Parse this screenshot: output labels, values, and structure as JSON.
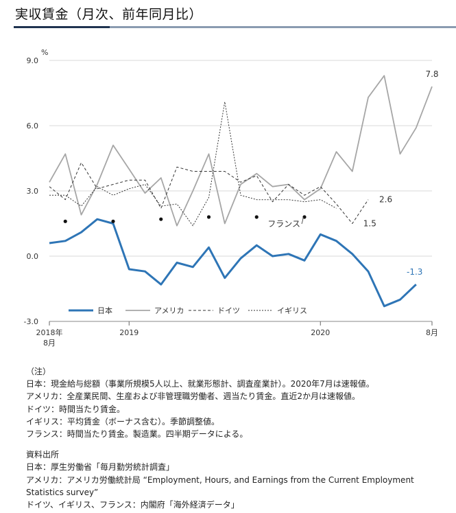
{
  "page_title": "実収賃金（月次、前年同月比）",
  "chart_data": {
    "type": "line",
    "title": "",
    "ylabel": "%",
    "ylim": [
      -3.0,
      9.0
    ],
    "yticks": [
      "9.0",
      "6.0",
      "3.0",
      "0.0",
      "-3.0"
    ],
    "ytick_values": [
      9,
      6,
      3,
      0,
      -3
    ],
    "xlim": [
      0,
      24
    ],
    "xticks": [
      {
        "pos": 0,
        "label": "2018年",
        "label2": "8月"
      },
      {
        "pos": 5,
        "label": "2019",
        "label2": ""
      },
      {
        "pos": 17,
        "label": "2020",
        "label2": ""
      },
      {
        "pos": 24,
        "label": "8月",
        "label2": ""
      }
    ],
    "grid": true,
    "legend_position": "bottom-left",
    "colors": {
      "japan": "#2e75b6",
      "usa": "#a6a6a6",
      "germany": "#333333",
      "uk": "#333333",
      "france": "#111111"
    },
    "series": [
      {
        "name": "日本",
        "key": "japan",
        "style": "solid-thick",
        "x": [
          0,
          1,
          2,
          3,
          4,
          5,
          6,
          7,
          8,
          9,
          10,
          11,
          12,
          13,
          14,
          15,
          16,
          17,
          18,
          19,
          20,
          21,
          22,
          23
        ],
        "values": [
          0.6,
          0.7,
          1.1,
          1.7,
          1.5,
          -0.6,
          -0.7,
          -1.3,
          -0.3,
          -0.5,
          0.4,
          -1.0,
          -0.1,
          0.5,
          0.0,
          0.1,
          -0.2,
          1.0,
          0.7,
          0.1,
          -0.7,
          -2.3,
          -2.0,
          -1.3
        ]
      },
      {
        "name": "アメリカ",
        "key": "usa",
        "style": "solid",
        "x": [
          0,
          1,
          2,
          3,
          4,
          5,
          6,
          7,
          8,
          9,
          10,
          11,
          12,
          13,
          14,
          15,
          16,
          17,
          18,
          19,
          20,
          21,
          22,
          23,
          24
        ],
        "values": [
          3.4,
          4.7,
          1.9,
          3.3,
          5.1,
          4.0,
          2.9,
          3.6,
          1.4,
          3.0,
          4.7,
          1.5,
          3.3,
          3.8,
          3.2,
          3.3,
          2.6,
          3.1,
          4.8,
          3.9,
          7.3,
          8.3,
          4.7,
          5.9,
          7.8
        ]
      },
      {
        "name": "ドイツ",
        "key": "germany",
        "style": "dashed",
        "x": [
          0,
          1,
          2,
          3,
          4,
          5,
          6,
          7,
          8,
          9,
          10,
          11,
          12,
          13,
          14,
          15,
          16,
          17,
          18,
          19,
          20
        ],
        "values": [
          3.2,
          2.6,
          4.3,
          3.1,
          3.3,
          3.5,
          3.5,
          2.2,
          4.1,
          3.9,
          3.9,
          3.9,
          3.4,
          3.7,
          2.5,
          3.3,
          2.8,
          3.2,
          2.4,
          1.5,
          2.6
        ]
      },
      {
        "name": "イギリス",
        "key": "uk",
        "style": "dotted",
        "x": [
          0,
          1,
          2,
          3,
          4,
          5,
          6,
          7,
          8,
          9,
          10,
          11,
          12,
          13,
          14,
          15,
          16,
          17,
          18
        ],
        "values": [
          2.8,
          2.8,
          2.3,
          3.2,
          2.8,
          3.1,
          3.3,
          2.3,
          2.4,
          1.4,
          2.7,
          7.1,
          2.8,
          2.6,
          2.6,
          2.6,
          2.5,
          2.6,
          2.2
        ]
      },
      {
        "name": "フランス",
        "key": "france",
        "style": "points",
        "x": [
          1,
          4,
          7,
          10,
          13,
          16
        ],
        "values": [
          1.6,
          1.6,
          1.7,
          1.8,
          1.8,
          1.8
        ]
      }
    ],
    "annotations": [
      {
        "text": "7.8",
        "x": 24,
        "y": 7.8
      },
      {
        "text": "2.6",
        "x": 20,
        "y": 2.6
      },
      {
        "text": "1.5",
        "x": 19,
        "y": 1.5
      },
      {
        "text": "-1.3",
        "x": 23,
        "y": -1.3
      },
      {
        "text": "フランス",
        "x": 16,
        "y": 1.8
      }
    ],
    "legend": [
      "日本",
      "アメリカ",
      "ドイツ",
      "イギリス"
    ]
  },
  "notes": {
    "heading": "（注）",
    "lines": [
      "日本：現金給与総額（事業所規模5人以上、就業形態計、調査産業計）。2020年7月は速報値。",
      "アメリカ：全産業民間、生産および非管理職労働者、週当たり賃金。直近2か月は速報値。",
      "ドイツ：時間当たり賃金。",
      "イギリス：平均賃金（ボーナス含む）。季節調整値。",
      "フランス：時間当たり賃金。製造業。四半期データによる。"
    ],
    "source_heading": "資料出所",
    "source_lines": [
      "日本：厚生労働省「毎月勤労統計調査」",
      "アメリカ：アメリカ労働統計局 “Employment, Hours, and Earnings from the Current Employment Statistics survey”",
      "ドイツ、イギリス、フランス：内閣府「海外経済データ」"
    ]
  }
}
